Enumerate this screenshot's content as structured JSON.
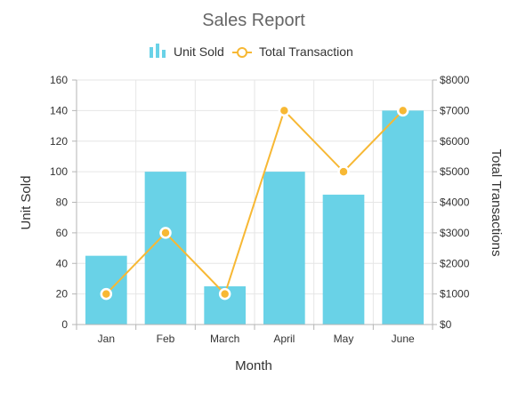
{
  "chart_data": {
    "type": "bar",
    "title": "Sales Report",
    "categories": [
      "Jan",
      "Feb",
      "March",
      "April",
      "May",
      "June"
    ],
    "xlabel": "Month",
    "ylabel": "Unit Sold",
    "y2label": "Total Transactions",
    "ylim": [
      0,
      160
    ],
    "y_ticks": [
      "0",
      "20",
      "40",
      "60",
      "80",
      "100",
      "120",
      "140",
      "160"
    ],
    "y2lim": [
      0,
      8000
    ],
    "y2_ticks": [
      "$0",
      "$1000",
      "$2000",
      "$3000",
      "$4000",
      "$5000",
      "$6000",
      "$7000",
      "$8000"
    ],
    "grid": true,
    "legend_position": "top",
    "legend": [
      "Unit Sold",
      "Total Transaction"
    ],
    "series": [
      {
        "name": "Unit Sold",
        "type": "bar",
        "axis": "left",
        "values": [
          45,
          100,
          25,
          100,
          85,
          140
        ],
        "color": "#69d2e7"
      },
      {
        "name": "Total Transaction",
        "type": "line",
        "axis": "right",
        "values": [
          1000,
          3000,
          1000,
          7000,
          5000,
          7000
        ],
        "color": "#f7b834"
      }
    ]
  }
}
